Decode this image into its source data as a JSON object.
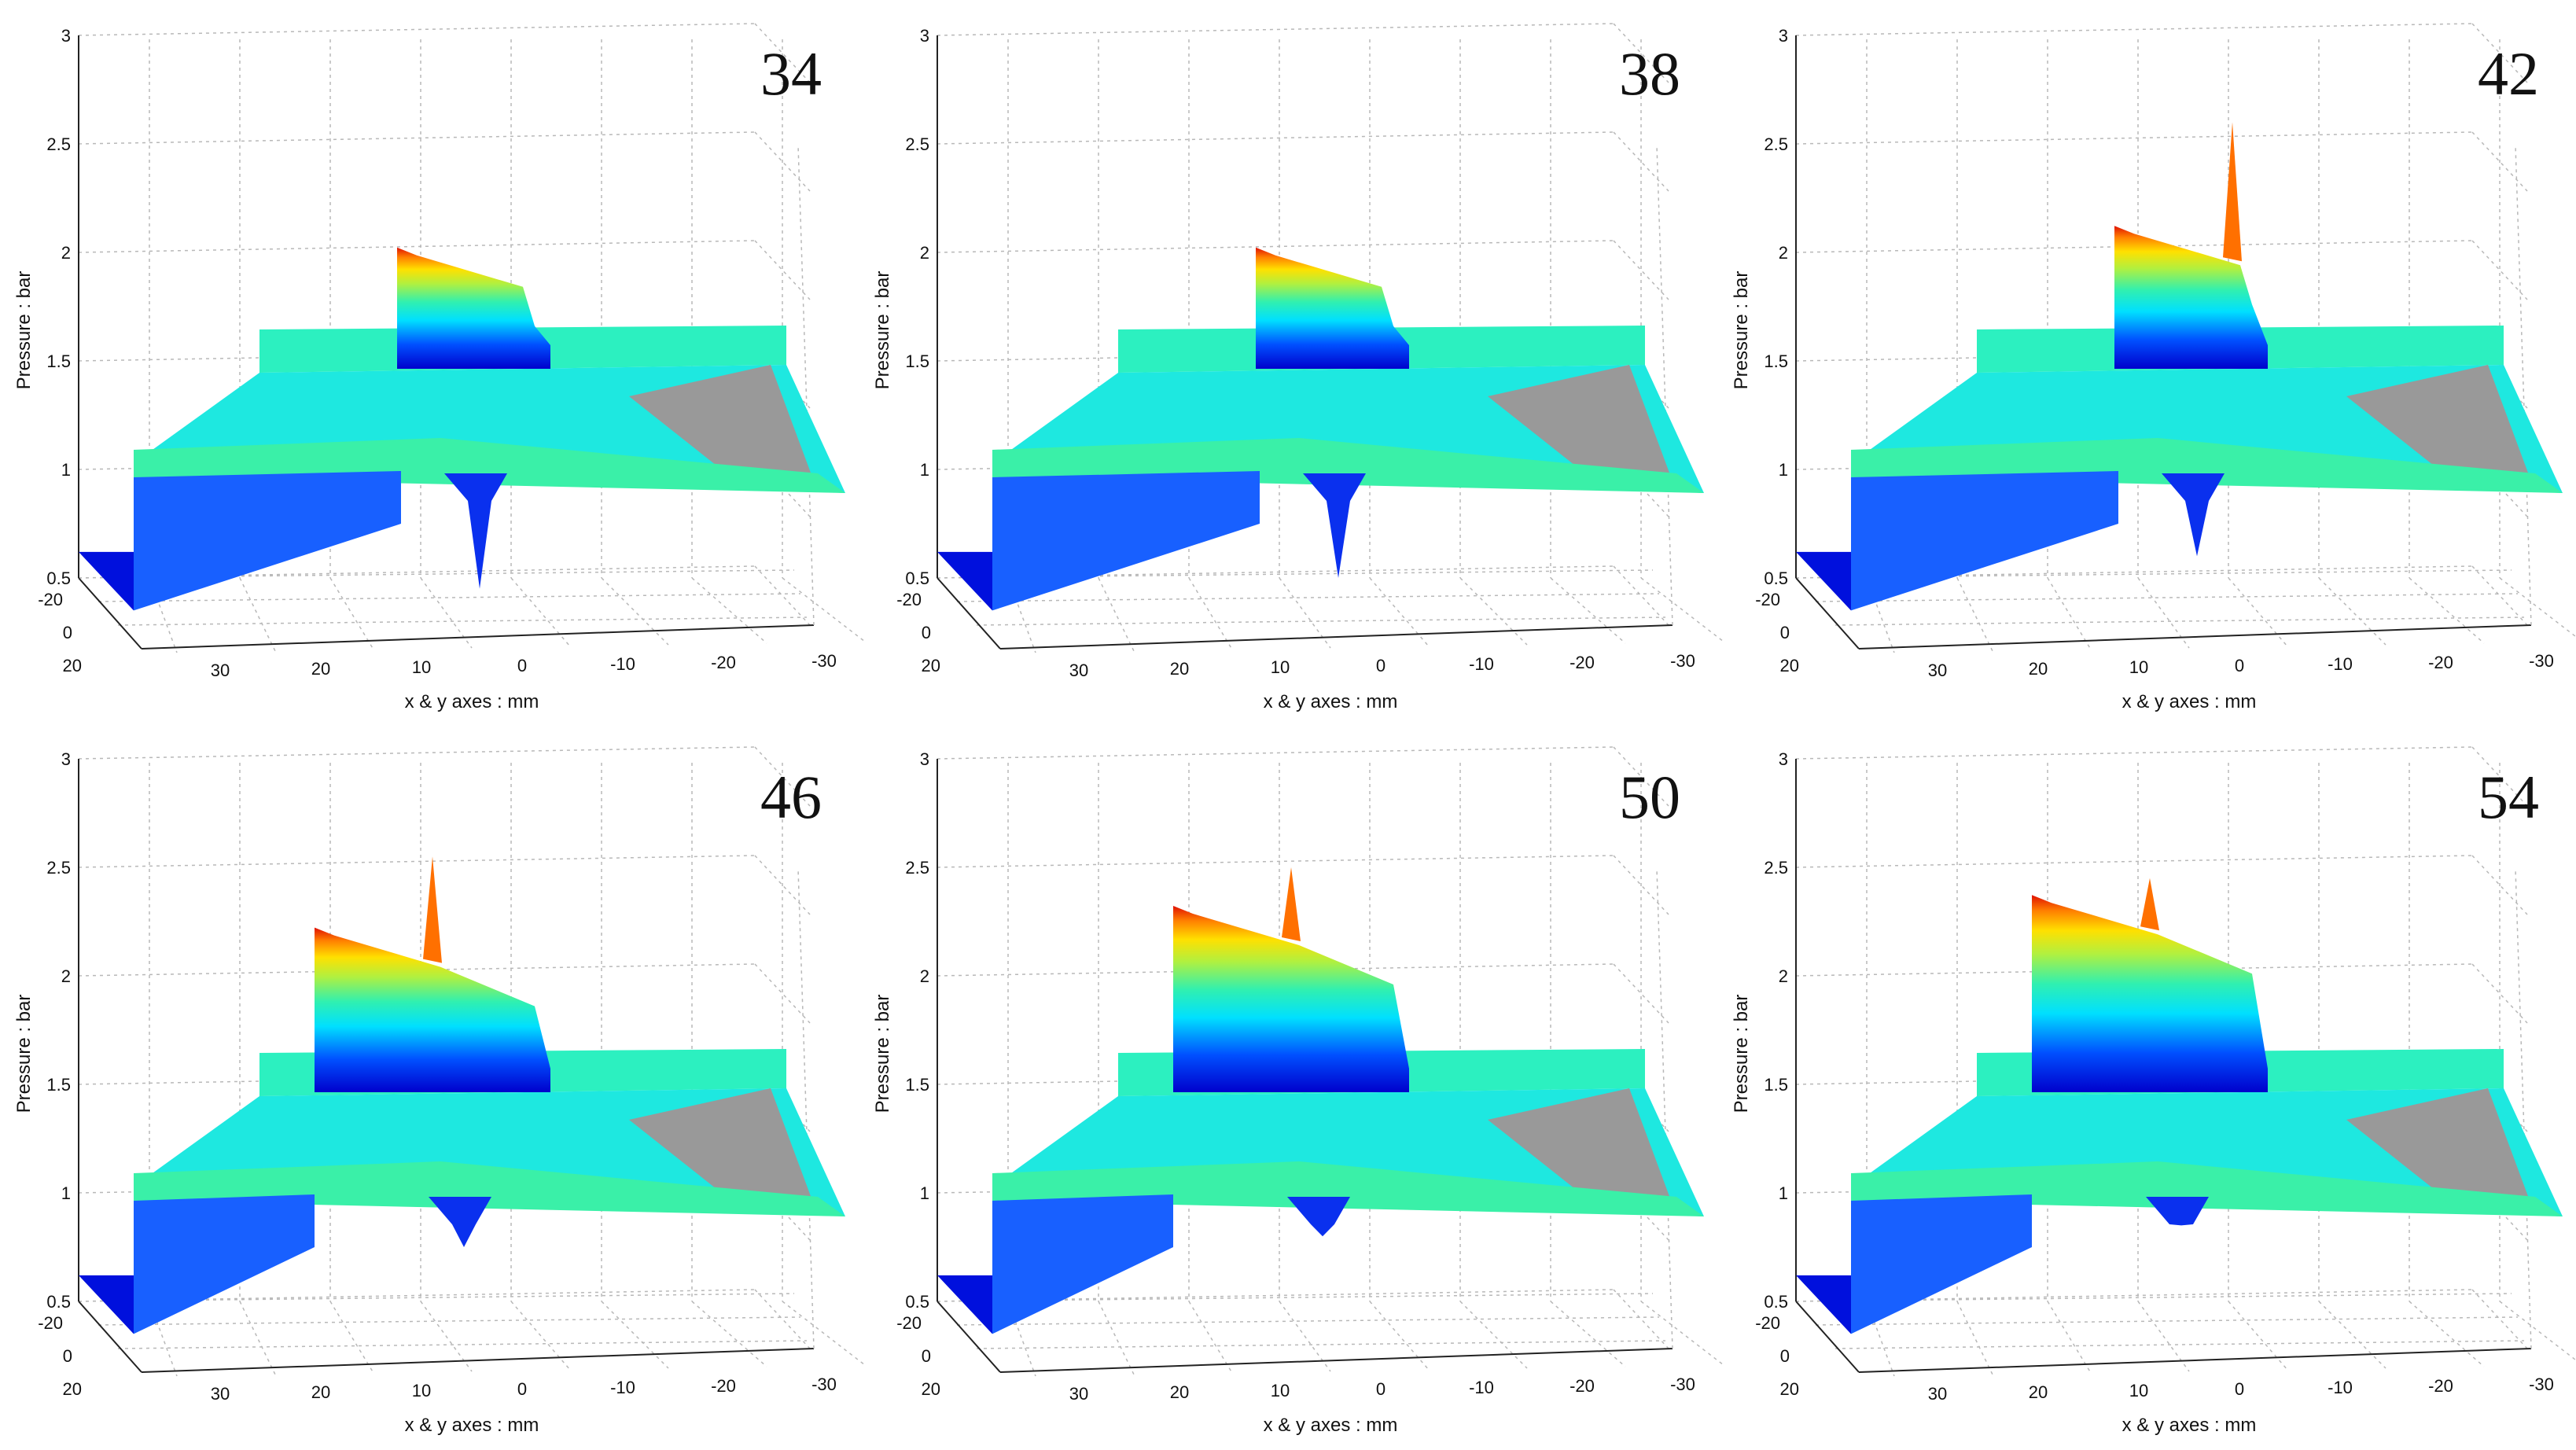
{
  "chart_data": {
    "type": "surface3d",
    "title": "",
    "zlabel": "Pressure : bar",
    "xlabel": "x & y axes : mm",
    "zlim": [
      0.5,
      3
    ],
    "z_ticks": [
      "0.5",
      "1",
      "1.5",
      "2",
      "2.5",
      "3"
    ],
    "x_ticks": [
      "30",
      "20",
      "10",
      "0",
      "-10",
      "-20",
      "-30"
    ],
    "y_ticks": [
      "-20",
      "0",
      "20"
    ],
    "colormap": "jet",
    "panels": [
      {
        "label": "34",
        "peak": 1.95,
        "plateau": 1.95,
        "dip": 0.45
      },
      {
        "label": "38",
        "peak": 1.95,
        "plateau": 1.95,
        "dip": 0.5
      },
      {
        "label": "42",
        "peak": 2.6,
        "plateau": 2.05,
        "dip": 0.6
      },
      {
        "label": "46",
        "peak": 2.55,
        "plateau": 2.15,
        "dip": 0.75
      },
      {
        "label": "50",
        "peak": 2.5,
        "plateau": 2.25,
        "dip": 0.8
      },
      {
        "label": "54",
        "peak": 2.45,
        "plateau": 2.3,
        "dip": 0.85
      }
    ]
  }
}
